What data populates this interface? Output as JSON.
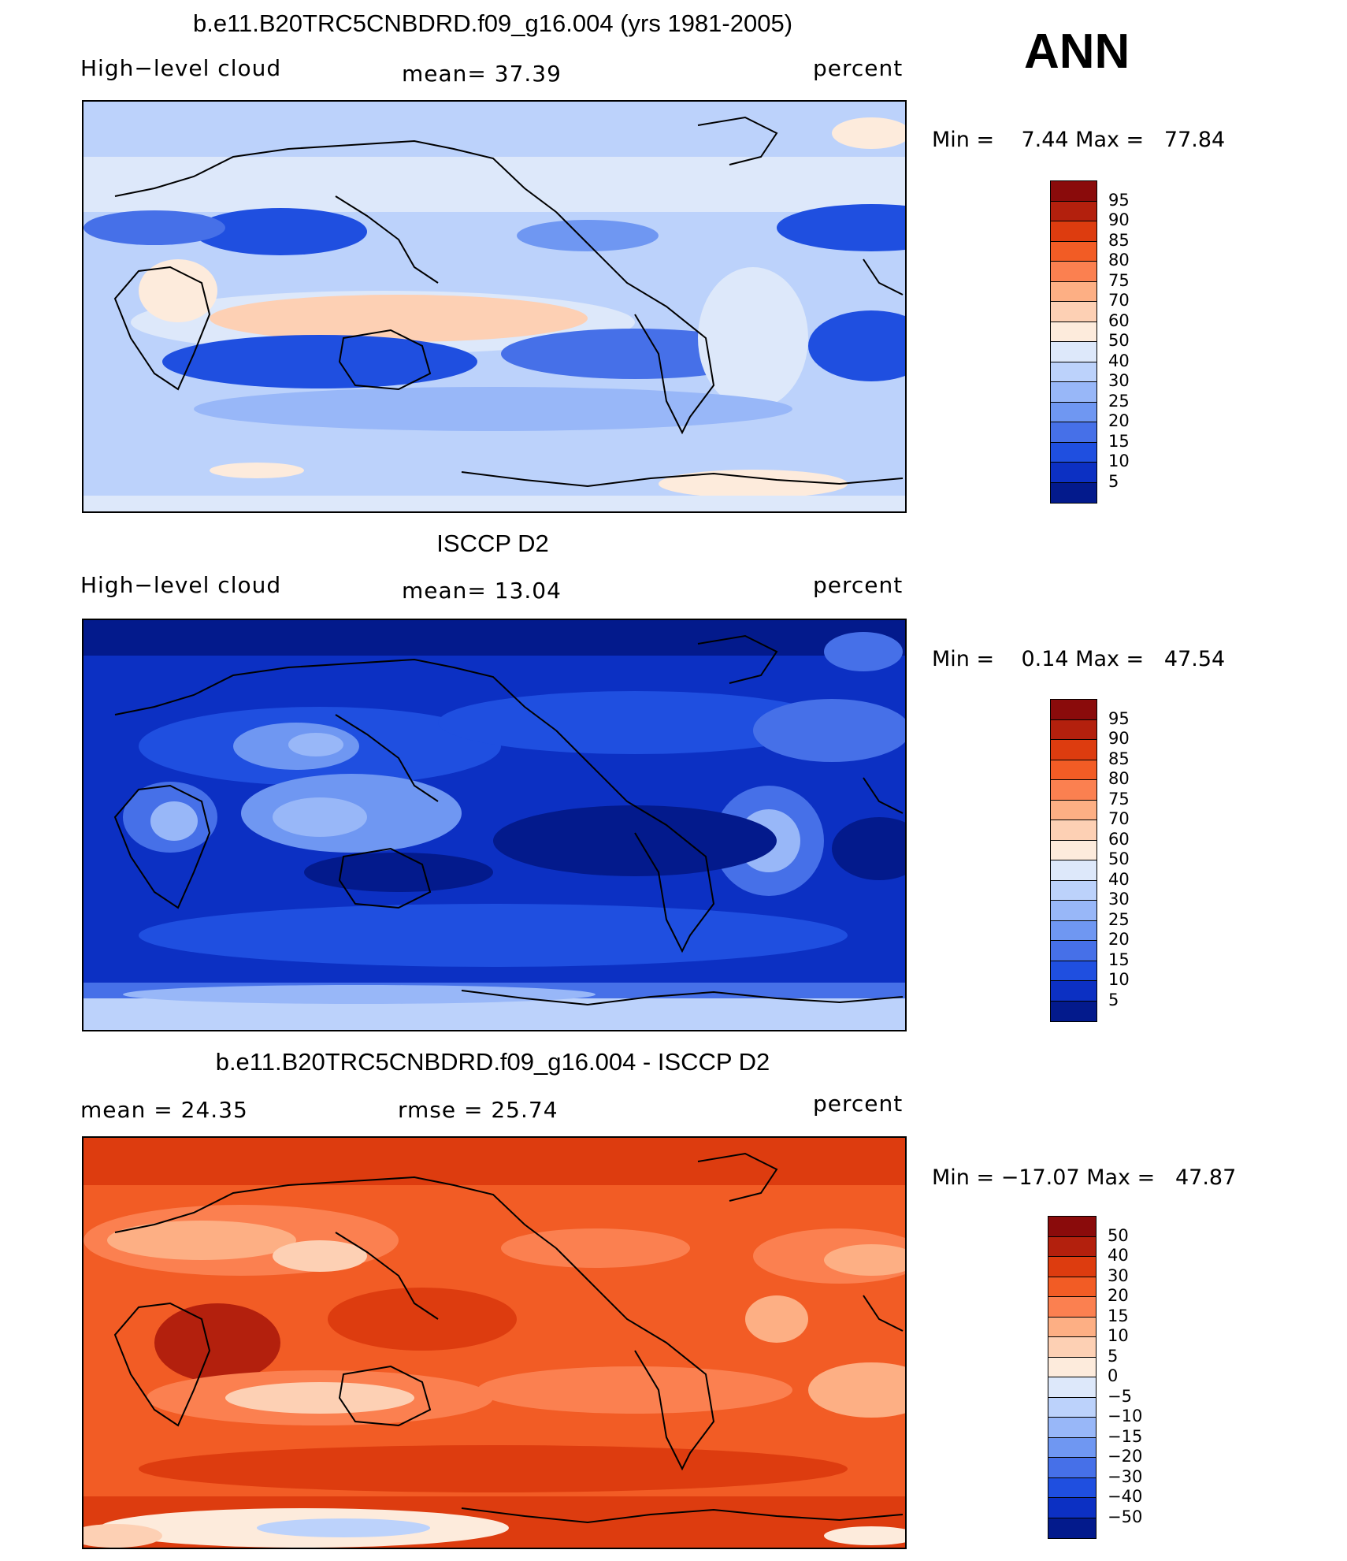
{
  "season": "ANN",
  "units": "percent",
  "panels": [
    {
      "title": "b.e11.B20TRC5CNBDRD.f09_g16.004 (yrs 1981-2005)",
      "left_label": "High−level cloud",
      "center_label": "mean=   37.39",
      "right_label": "percent",
      "min_max": "Min =    7.44 Max =   77.84",
      "colorbar": {
        "levels": [
          "95",
          "90",
          "85",
          "80",
          "75",
          "70",
          "60",
          "50",
          "40",
          "30",
          "25",
          "20",
          "15",
          "10",
          "5"
        ],
        "colors": [
          "#8a0b0b",
          "#b3200d",
          "#dd3c0f",
          "#f25c25",
          "#fb8050",
          "#fdaf84",
          "#fdd0b4",
          "#fdebdc",
          "#dde8fa",
          "#bcd2fb",
          "#98b7f8",
          "#6f97f2",
          "#4670e8",
          "#1f4fe0",
          "#0c30c3",
          "#031a8c"
        ]
      }
    },
    {
      "title": "ISCCP D2",
      "left_label": "High−level cloud",
      "center_label": "mean=   13.04",
      "right_label": "percent",
      "min_max": "Min =    0.14 Max =   47.54",
      "colorbar": {
        "levels": [
          "95",
          "90",
          "85",
          "80",
          "75",
          "70",
          "60",
          "50",
          "40",
          "30",
          "25",
          "20",
          "15",
          "10",
          "5"
        ],
        "colors": [
          "#8a0b0b",
          "#b3200d",
          "#dd3c0f",
          "#f25c25",
          "#fb8050",
          "#fdaf84",
          "#fdd0b4",
          "#fdebdc",
          "#dde8fa",
          "#bcd2fb",
          "#98b7f8",
          "#6f97f2",
          "#4670e8",
          "#1f4fe0",
          "#0c30c3",
          "#031a8c"
        ]
      }
    },
    {
      "title": "b.e11.B20TRC5CNBDRD.f09_g16.004 - ISCCP D2",
      "left_label": "mean =    24.35",
      "center_label": "rmse =    25.74",
      "right_label": "percent",
      "min_max": "Min = −17.07 Max =   47.87",
      "colorbar": {
        "levels": [
          "50",
          "40",
          "30",
          "20",
          "15",
          "10",
          "5",
          "0",
          "−5",
          "−10",
          "−15",
          "−20",
          "−30",
          "−40",
          "−50"
        ],
        "colors": [
          "#8a0b0b",
          "#b3200d",
          "#dd3c0f",
          "#f25c25",
          "#fb8050",
          "#fdaf84",
          "#fdd0b4",
          "#fdebdc",
          "#dde8fa",
          "#bcd2fb",
          "#98b7f8",
          "#6f97f2",
          "#4670e8",
          "#1f4fe0",
          "#0c30c3",
          "#031a8c"
        ]
      }
    }
  ]
}
